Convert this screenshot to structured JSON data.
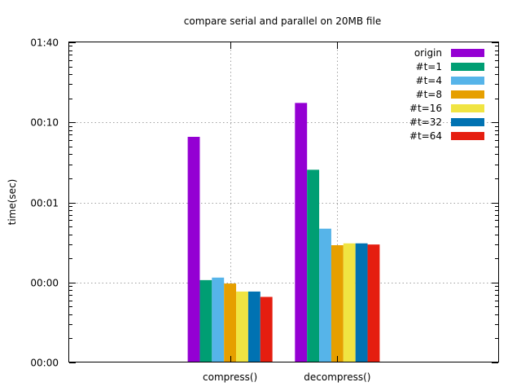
{
  "chart_data": {
    "type": "bar",
    "title": "compare serial and parallel on 20MB file",
    "xlabel": "",
    "ylabel": "time(sec)",
    "yscale": "log",
    "ylim": [
      0.01,
      100
    ],
    "yticks": [
      {
        "value": 100,
        "label": "01:40"
      },
      {
        "value": 10,
        "label": "00:10"
      },
      {
        "value": 1,
        "label": "00:01"
      },
      {
        "value": 0.1,
        "label": "00:00"
      },
      {
        "value": 0.01,
        "label": "00:00"
      }
    ],
    "categories": [
      "compress()",
      "decompress()"
    ],
    "grid": true,
    "legend_position": "top-right",
    "series": [
      {
        "name": "origin",
        "color": "#9400d3",
        "values": [
          6.6,
          17.5
        ]
      },
      {
        "name": "#t=1",
        "color": "#009e73",
        "values": [
          0.107,
          2.56
        ]
      },
      {
        "name": "#t=4",
        "color": "#56b4e9",
        "values": [
          0.115,
          0.47
        ]
      },
      {
        "name": "#t=8",
        "color": "#e69f00",
        "values": [
          0.097,
          0.292
        ]
      },
      {
        "name": "#t=16",
        "color": "#f0e442",
        "values": [
          0.077,
          0.308
        ]
      },
      {
        "name": "#t=32",
        "color": "#0072b2",
        "values": [
          0.077,
          0.308
        ]
      },
      {
        "name": "#t=64",
        "color": "#e51e10",
        "values": [
          0.066,
          0.298
        ]
      }
    ]
  }
}
